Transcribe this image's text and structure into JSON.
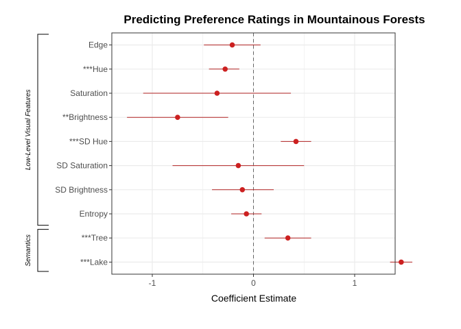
{
  "chart_data": {
    "type": "scatter",
    "subtype": "coefficient-plot-with-error-bars",
    "title": "Predicting Preference Ratings in Mountainous Forests",
    "xlabel": "Coefficient Estimate",
    "ylabel": "",
    "xlim": [
      -1.4,
      1.4
    ],
    "xticks": [
      -1,
      0,
      1
    ],
    "xtick_labels": [
      "-1",
      "0",
      "1"
    ],
    "reference_line_x": 0,
    "grid": true,
    "colors": {
      "point": "#cc2020",
      "errorbar": "#b22222",
      "refline": "#666666",
      "grid": "#ebebeb",
      "panel_border": "#333333"
    },
    "terms": [
      {
        "label": "Edge",
        "estimate": -0.21,
        "low": -0.49,
        "high": 0.07
      },
      {
        "label": "***Hue",
        "estimate": -0.28,
        "low": -0.44,
        "high": -0.14
      },
      {
        "label": "Saturation",
        "estimate": -0.36,
        "low": -1.09,
        "high": 0.37
      },
      {
        "label": "**Brightness",
        "estimate": -0.75,
        "low": -1.25,
        "high": -0.25
      },
      {
        "label": "***SD Hue",
        "estimate": 0.42,
        "low": 0.27,
        "high": 0.57
      },
      {
        "label": "SD Saturation",
        "estimate": -0.15,
        "low": -0.8,
        "high": 0.5
      },
      {
        "label": "SD Brightness",
        "estimate": -0.11,
        "low": -0.41,
        "high": 0.2
      },
      {
        "label": "Entropy",
        "estimate": -0.07,
        "low": -0.22,
        "high": 0.08
      },
      {
        "label": "***Tree",
        "estimate": 0.34,
        "low": 0.11,
        "high": 0.57
      },
      {
        "label": "***Lake",
        "estimate": 1.46,
        "low": 1.35,
        "high": 1.57
      }
    ],
    "groups": [
      {
        "label": "Low-Level Visual Features",
        "first": 0,
        "last": 7
      },
      {
        "label": "Semantics",
        "first": 8,
        "last": 9
      }
    ]
  }
}
